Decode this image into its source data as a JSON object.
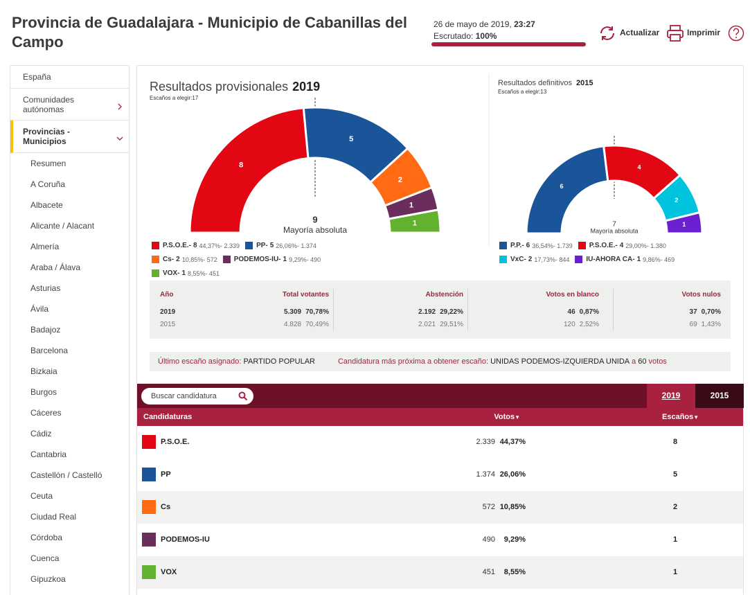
{
  "header": {
    "title": "Provincia de Guadalajara - Municipio de Cabanillas del Campo",
    "date": "26 de mayo de 2019,",
    "time": "23:27",
    "scrutiny_label": "Escrutado:",
    "scrutiny": {
      "value": 100,
      "label": "100%"
    },
    "actions": [
      "Actualizar",
      "Imprimir"
    ]
  },
  "sidebar": {
    "items": [
      "España",
      "Comunidades autónomas",
      "Provincias - Municipios"
    ],
    "subitems": [
      "Resumen",
      "A Coruña",
      "Albacete",
      "Alicante / Alacant",
      "Almería",
      "Araba / Álava",
      "Asturias",
      "Ávila",
      "Badajoz",
      "Barcelona",
      "Bizkaia",
      "Burgos",
      "Cáceres",
      "Cádiz",
      "Cantabria",
      "Castellón / Castelló",
      "Ceuta",
      "Ciudad Real",
      "Córdoba",
      "Cuenca",
      "Gipuzkoa"
    ]
  },
  "results_2019": {
    "title": "Resultados provisionales",
    "year": "2019",
    "seats_label": "Escaños a elegir:",
    "seats_total": 17,
    "majority": 9,
    "majority_label": "Mayoría absoluta",
    "parties": [
      {
        "name": "P.S.O.E.-",
        "seats": 8,
        "detail": "44,37%- 2.339",
        "color": "#e30613"
      },
      {
        "name": "PP-",
        "seats": 5,
        "detail": "26,06%- 1.374",
        "color": "#1a5499"
      },
      {
        "name": "Cs-",
        "seats": 2,
        "detail": "10,85%- 572",
        "color": "#ff6a13"
      },
      {
        "name": "PODEMOS-IU-",
        "seats": 1,
        "detail": "9,29%- 490",
        "color": "#6b2d5c"
      },
      {
        "name": "VOX-",
        "seats": 1,
        "detail": "8,55%- 451",
        "color": "#63b22f"
      }
    ]
  },
  "results_2015": {
    "title": "Resultados definitivos",
    "year": "2015",
    "seats_label": "Escaños a elegir:",
    "seats_total": 13,
    "majority": 7,
    "majority_label": "Mayoría absoluta",
    "parties": [
      {
        "name": "P.P.-",
        "seats": 6,
        "detail": "36,54%- 1.739",
        "color": "#1a5499"
      },
      {
        "name": "P.S.O.E.-",
        "seats": 4,
        "detail": "29,00%- 1.380",
        "color": "#e30613"
      },
      {
        "name": "VxC-",
        "seats": 2,
        "detail": "17,73%- 844",
        "color": "#00c3dd"
      },
      {
        "name": "IU-AHORA CA-",
        "seats": 1,
        "detail": "9,86%- 469",
        "color": "#6a1fd1"
      }
    ]
  },
  "participation": {
    "headers": [
      "Año",
      "Total votantes",
      "Abstención",
      "Votos en blanco",
      "Votos nulos"
    ],
    "rows": [
      [
        "2019",
        "5.309",
        "70,78%",
        "2.192",
        "29,22%",
        "46",
        "0,87%",
        "37",
        "0,70%"
      ],
      [
        "2015",
        "4.828",
        "70,49%",
        "2.021",
        "29,51%",
        "120",
        "2,52%",
        "69",
        "1,43%"
      ]
    ]
  },
  "seat_info": {
    "last_label": "Último escaño asignado:",
    "last_party": "PARTIDO POPULAR",
    "next_label": "Candidatura más próxima a obtener escaño:",
    "next_party": "UNIDAS PODEMOS-IZQUIERDA UNIDA",
    "prefix": "a",
    "margin": "60",
    "unit": "votos"
  },
  "table": {
    "search": "Buscar candidatura",
    "tabs": [
      "2019",
      "2015"
    ],
    "headers": [
      "Candidaturas",
      "Votos",
      "Escaños"
    ],
    "rows": [
      {
        "name": "P.S.O.E.",
        "votes": "2.339",
        "pct": "44,37%",
        "seats": 8,
        "color": "#e30613"
      },
      {
        "name": "PP",
        "votes": "1.374",
        "pct": "26,06%",
        "seats": 5,
        "color": "#1a5499"
      },
      {
        "name": "Cs",
        "votes": "572",
        "pct": "10,85%",
        "seats": 2,
        "color": "#ff6a13"
      },
      {
        "name": "PODEMOS-IU",
        "votes": "490",
        "pct": "9,29%",
        "seats": 1,
        "color": "#6b2d5c"
      },
      {
        "name": "VOX",
        "votes": "451",
        "pct": "8,55%",
        "seats": 1,
        "color": "#63b22f"
      }
    ]
  }
}
